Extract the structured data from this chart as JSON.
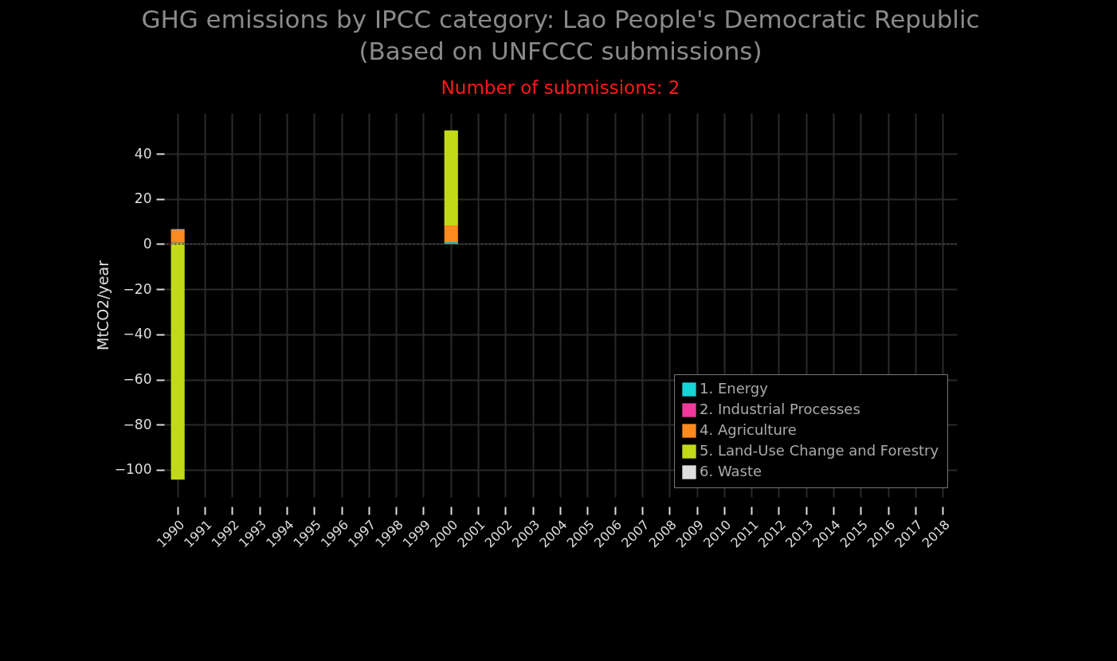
{
  "chart_data": {
    "type": "bar",
    "title": "GHG emissions by IPCC category: Lao People's Democratic Republic\n(Based on UNFCCC submissions)",
    "subtitle": "Number of submissions: 2",
    "ylabel": "MtCO2/year",
    "categories": [
      "1990",
      "1991",
      "1992",
      "1993",
      "1994",
      "1995",
      "1996",
      "1997",
      "1998",
      "1999",
      "2000",
      "2001",
      "2002",
      "2003",
      "2004",
      "2005",
      "2006",
      "2007",
      "2008",
      "2009",
      "2010",
      "2011",
      "2012",
      "2013",
      "2014",
      "2015",
      "2016",
      "2017",
      "2018"
    ],
    "stacked": true,
    "series": [
      {
        "name": "1. Energy",
        "color": "#17d4d8",
        "values": [
          0.6,
          null,
          null,
          null,
          null,
          null,
          null,
          null,
          null,
          null,
          0.8,
          null,
          null,
          null,
          null,
          null,
          null,
          null,
          null,
          null,
          null,
          null,
          null,
          null,
          null,
          null,
          null,
          null,
          null
        ]
      },
      {
        "name": "2. Industrial Processes",
        "color": "#f0399a",
        "values": [
          null,
          null,
          null,
          null,
          null,
          null,
          null,
          null,
          null,
          null,
          null,
          null,
          null,
          null,
          null,
          null,
          null,
          null,
          null,
          null,
          null,
          null,
          null,
          null,
          null,
          null,
          null,
          null,
          null
        ]
      },
      {
        "name": "4. Agriculture",
        "color": "#fd8a1e",
        "values": [
          5.7,
          null,
          null,
          null,
          null,
          null,
          null,
          null,
          null,
          null,
          7.5,
          null,
          null,
          null,
          null,
          null,
          null,
          null,
          null,
          null,
          null,
          null,
          null,
          null,
          null,
          null,
          null,
          null,
          null
        ]
      },
      {
        "name": "5. Land-Use Change and Forestry",
        "color": "#c2d91a",
        "values": [
          -104.3,
          null,
          null,
          null,
          null,
          null,
          null,
          null,
          null,
          null,
          42.0,
          null,
          null,
          null,
          null,
          null,
          null,
          null,
          null,
          null,
          null,
          null,
          null,
          null,
          null,
          null,
          null,
          null,
          null
        ]
      },
      {
        "name": "6. Waste",
        "color": "#e0e0e0",
        "values": [
          0.3,
          null,
          null,
          null,
          null,
          null,
          null,
          null,
          null,
          null,
          null,
          null,
          null,
          null,
          null,
          null,
          null,
          null,
          null,
          null,
          null,
          null,
          null,
          null,
          null,
          null,
          null,
          null,
          null
        ]
      }
    ],
    "ylim": [
      -112,
      58
    ],
    "yticks": [
      -100,
      -80,
      -60,
      -40,
      -20,
      0,
      20,
      40
    ],
    "ref_lines": [
      {
        "axis": "y",
        "value": 0,
        "line_style": "dotted",
        "color": "#444444"
      }
    ],
    "grid": true,
    "legend": "bottom right"
  }
}
